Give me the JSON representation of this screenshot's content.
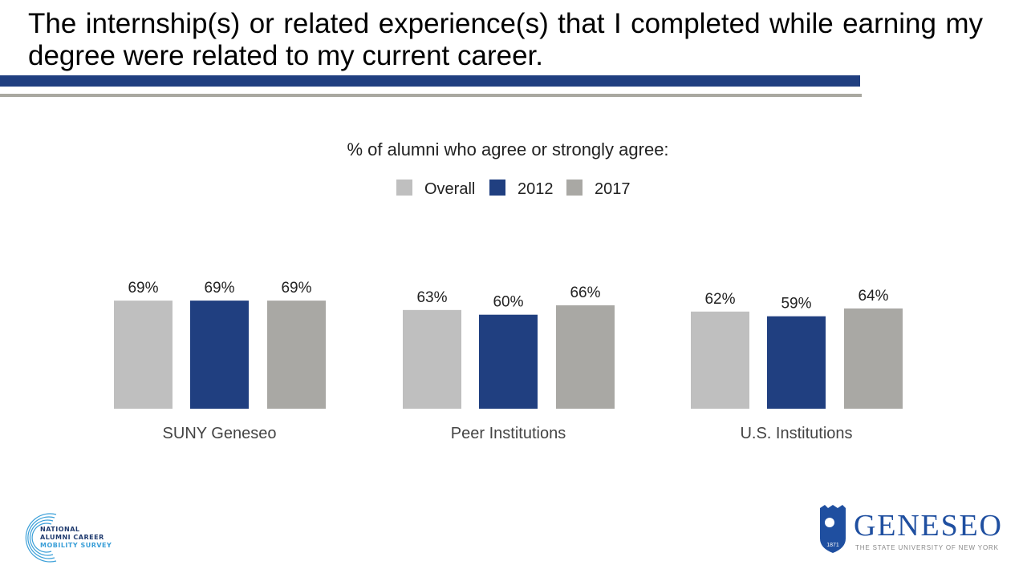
{
  "title": "The internship(s) or related experience(s) that I completed while earning my degree were related to my current career.",
  "chart_data": {
    "type": "bar",
    "title": "% of alumni who agree or strongly agree:",
    "categories": [
      "SUNY Geneseo",
      "Peer Institutions",
      "U.S. Institutions"
    ],
    "series": [
      {
        "name": "Overall",
        "values": [
          69,
          63,
          62
        ],
        "color": "#bfbfbf"
      },
      {
        "name": "2012",
        "values": [
          69,
          60,
          59
        ],
        "color": "#203f80"
      },
      {
        "name": "2017",
        "values": [
          69,
          66,
          64
        ],
        "color": "#a9a8a4"
      }
    ],
    "value_format": "%",
    "ylim": [
      0,
      100
    ],
    "legend_position": "top-center",
    "grid": false
  },
  "logos": {
    "left": {
      "lines": [
        "NATIONAL",
        "ALUMNI CAREER",
        "MOBILITY SURVEY"
      ]
    },
    "right": {
      "name": "GENESEO",
      "subtitle": "THE STATE UNIVERSITY OF NEW YORK",
      "year": "1871"
    }
  },
  "colors": {
    "accent_blue": "#203f80",
    "rule_gray": "#a9a8a0",
    "logo_light_blue": "#3a9fd8"
  }
}
